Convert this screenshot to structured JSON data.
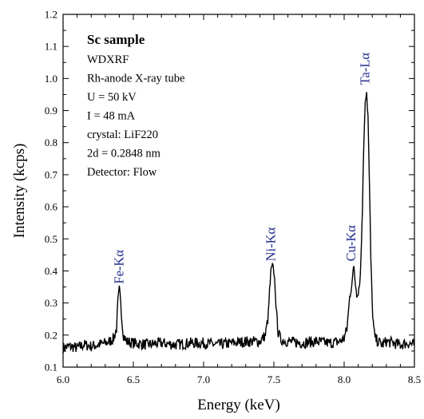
{
  "chart_data": {
    "type": "line",
    "xlabel": "Energy (keV)",
    "ylabel": "Intensity (kcps)",
    "xlim": [
      6.0,
      8.5
    ],
    "ylim": [
      0.1,
      1.2
    ],
    "x_ticks": [
      "6.0",
      "6.5",
      "7.0",
      "7.5",
      "8.0",
      "8.5"
    ],
    "y_ticks": [
      "0.1",
      "0.2",
      "0.3",
      "0.4",
      "0.5",
      "0.6",
      "0.7",
      "0.8",
      "0.9",
      "1.0",
      "1.1",
      "1.2"
    ],
    "grid": false,
    "info_box": {
      "title": "Sc sample",
      "lines": [
        "WDXRF",
        "Rh-anode X-ray tube",
        "U = 50 kV",
        "I = 48 mA",
        "crystal: LiF220",
        "2d = 0.2848 nm",
        "Detector: Flow"
      ]
    },
    "annotations": [
      {
        "text": "Fe-Kα",
        "x": 6.4,
        "y": 0.34
      },
      {
        "text": "Ni-Kα",
        "x": 7.48,
        "y": 0.41
      },
      {
        "text": "Cu-Kα",
        "x": 8.05,
        "y": 0.41
      },
      {
        "text": "Ta-Lα",
        "x": 8.15,
        "y": 0.96
      }
    ],
    "series": [
      {
        "color": "#000000",
        "x": [
          6.0,
          6.05,
          6.1,
          6.15,
          6.2,
          6.25,
          6.3,
          6.33,
          6.36,
          6.38,
          6.39,
          6.4,
          6.41,
          6.42,
          6.43,
          6.45,
          6.5,
          6.6,
          6.7,
          6.8,
          6.9,
          7.0,
          7.1,
          7.2,
          7.3,
          7.4,
          7.44,
          7.46,
          7.47,
          7.48,
          7.49,
          7.5,
          7.51,
          7.52,
          7.53,
          7.55,
          7.6,
          7.7,
          7.8,
          7.9,
          7.97,
          8.0,
          8.02,
          8.03,
          8.04,
          8.05,
          8.06,
          8.07,
          8.08,
          8.09,
          8.1,
          8.11,
          8.12,
          8.13,
          8.14,
          8.15,
          8.16,
          8.17,
          8.18,
          8.19,
          8.2,
          8.21,
          8.22,
          8.24,
          8.27,
          8.3,
          8.35,
          8.4,
          8.45,
          8.5
        ],
        "y": [
          0.16,
          0.165,
          0.16,
          0.17,
          0.165,
          0.17,
          0.175,
          0.18,
          0.19,
          0.22,
          0.3,
          0.34,
          0.31,
          0.24,
          0.2,
          0.18,
          0.175,
          0.17,
          0.175,
          0.17,
          0.175,
          0.175,
          0.17,
          0.175,
          0.18,
          0.18,
          0.2,
          0.26,
          0.34,
          0.4,
          0.41,
          0.4,
          0.34,
          0.26,
          0.21,
          0.185,
          0.18,
          0.175,
          0.18,
          0.175,
          0.18,
          0.19,
          0.22,
          0.27,
          0.32,
          0.35,
          0.38,
          0.41,
          0.36,
          0.33,
          0.34,
          0.36,
          0.44,
          0.6,
          0.8,
          0.94,
          0.96,
          0.88,
          0.66,
          0.44,
          0.29,
          0.22,
          0.19,
          0.18,
          0.17,
          0.18,
          0.175,
          0.17,
          0.175,
          0.17
        ]
      }
    ]
  }
}
